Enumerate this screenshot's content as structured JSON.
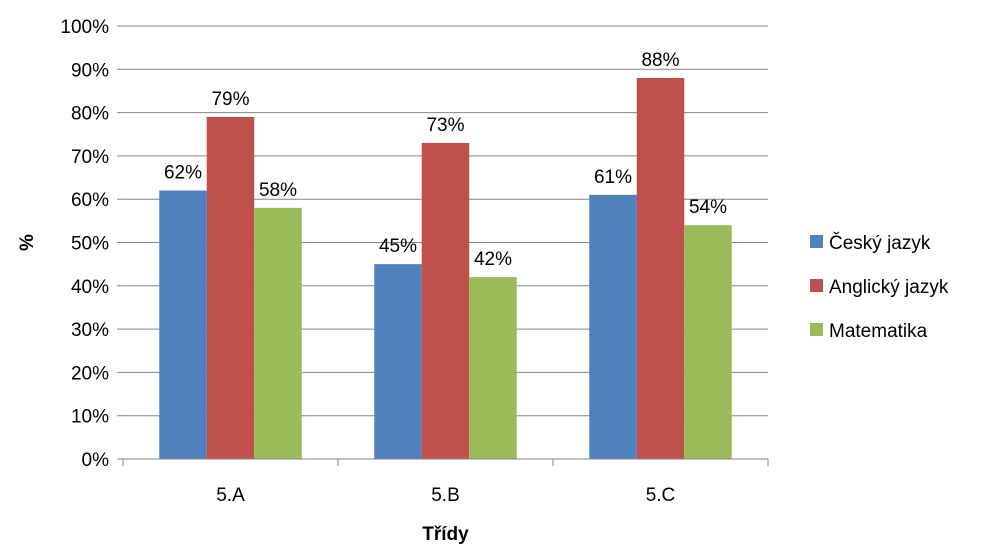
{
  "chart_data": {
    "type": "bar",
    "title": "",
    "xlabel": "Třídy",
    "ylabel": "%",
    "ylim": [
      0,
      100
    ],
    "y_ticks": [
      "0%",
      "10%",
      "20%",
      "30%",
      "40%",
      "50%",
      "60%",
      "70%",
      "80%",
      "90%",
      "100%"
    ],
    "categories": [
      "5.A",
      "5.B",
      "5.C"
    ],
    "series": [
      {
        "name": "Český jazyk",
        "color": "#4f81bd",
        "values": [
          62,
          45,
          61
        ],
        "labels": [
          "62%",
          "45%",
          "61%"
        ]
      },
      {
        "name": "Anglický jazyk",
        "color": "#c0504d",
        "values": [
          79,
          73,
          88
        ],
        "labels": [
          "79%",
          "73%",
          "88%"
        ]
      },
      {
        "name": "Matematika",
        "color": "#9bbb59",
        "values": [
          58,
          42,
          54
        ],
        "labels": [
          "58%",
          "42%",
          "54%"
        ]
      }
    ],
    "grid": true,
    "legend_position": "right"
  }
}
